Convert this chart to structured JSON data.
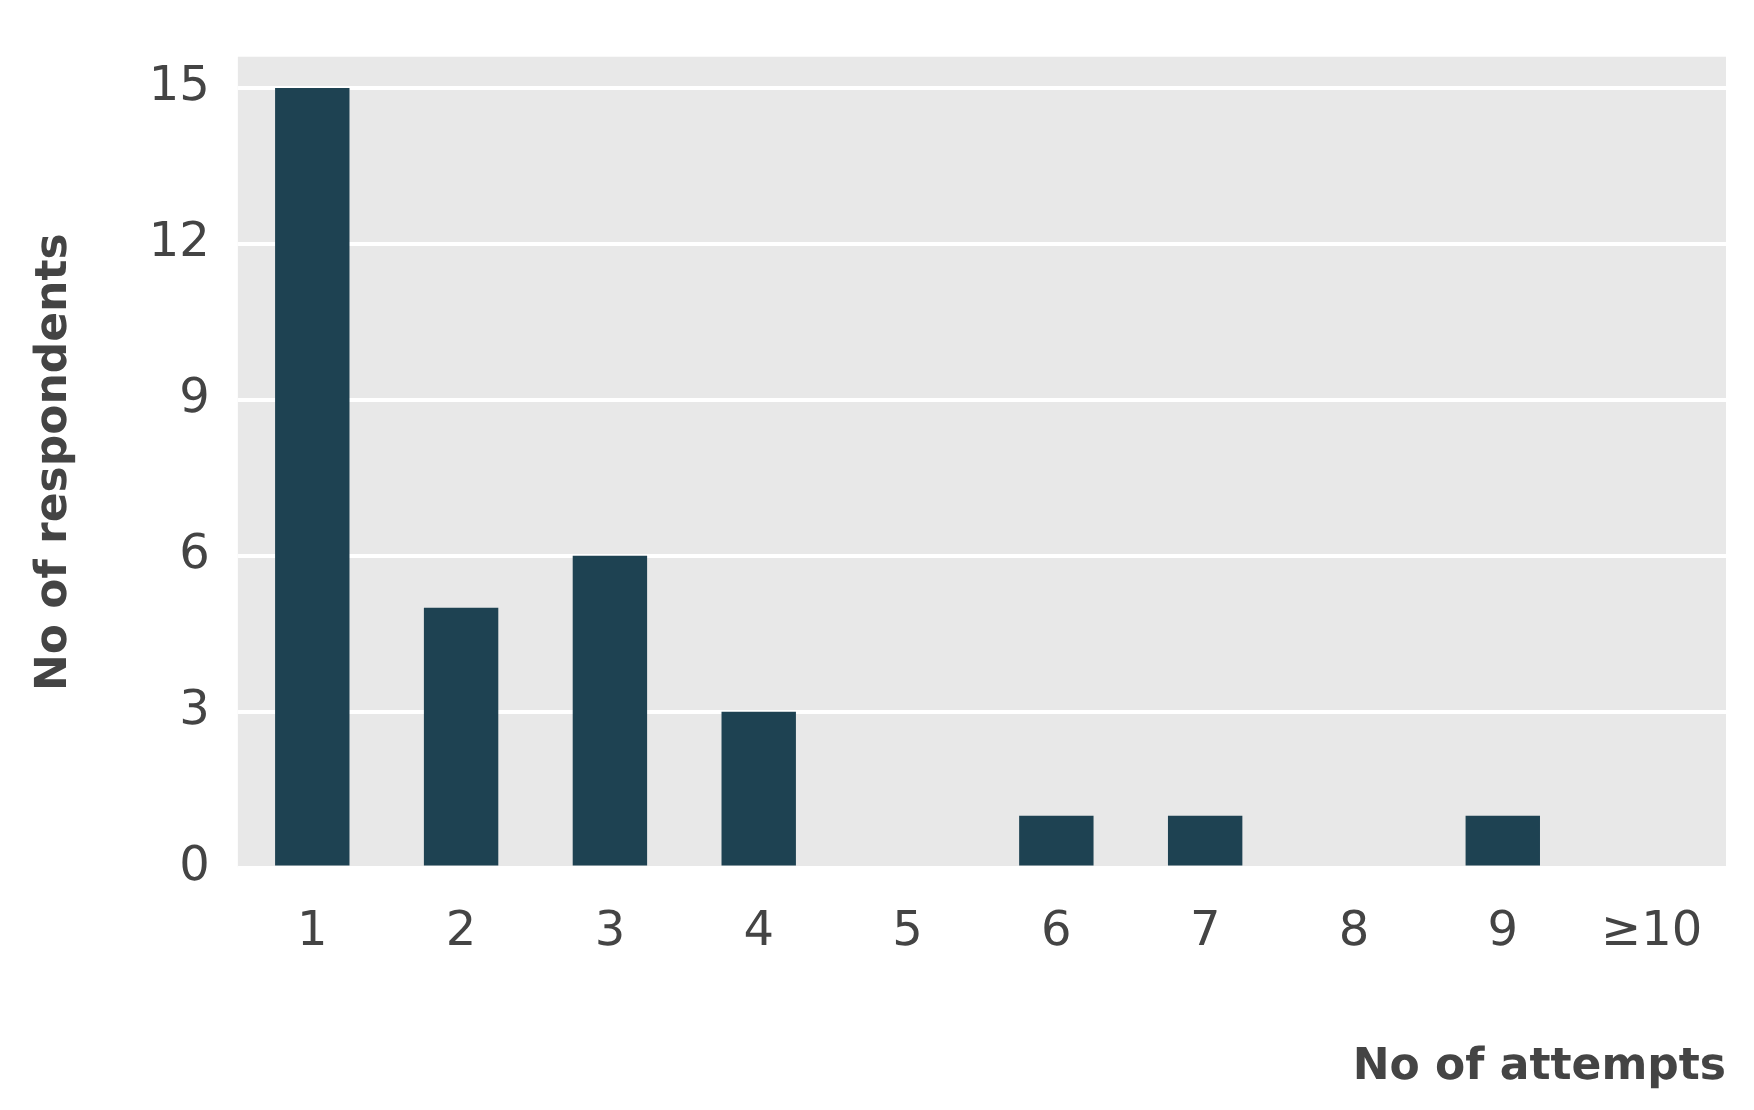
{
  "chart_data": {
    "type": "bar",
    "xlabel": "No of attempts",
    "ylabel": "No of respondents",
    "categories": [
      "1",
      "2",
      "3",
      "4",
      "5",
      "6",
      "7",
      "8",
      "9",
      "≥10"
    ],
    "values": [
      15,
      5,
      6,
      3,
      0,
      1,
      1,
      0,
      1,
      0
    ],
    "color": "#1e4252",
    "ylim": [
      0,
      15.6
    ],
    "yticks": [
      0,
      3,
      6,
      9,
      12,
      15
    ],
    "grid": "y",
    "legend": false
  }
}
